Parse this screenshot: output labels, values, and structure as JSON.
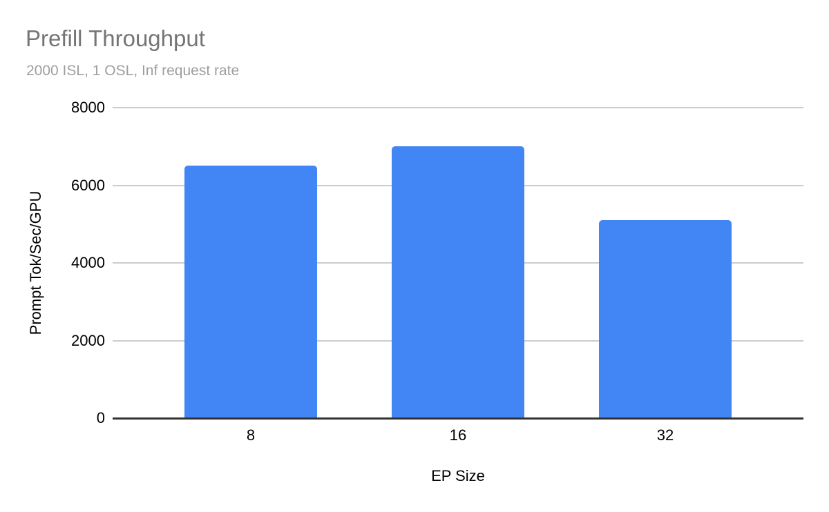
{
  "chart_data": {
    "type": "bar",
    "title": "Prefill Throughput",
    "subtitle": "2000 ISL, 1 OSL, Inf request rate",
    "categories": [
      "8",
      "16",
      "32"
    ],
    "values": [
      6500,
      7000,
      5100
    ],
    "xlabel": "EP Size",
    "ylabel": "Prompt Tok/Sec/GPU",
    "ylim": [
      0,
      8000
    ],
    "yticks": [
      "0",
      "2000",
      "4000",
      "6000",
      "8000"
    ],
    "grid": true,
    "legend_position": "none",
    "colors": {
      "bar": "#4285f4",
      "title": "#757575",
      "subtitle": "#9e9e9e",
      "axis_text": "#000000",
      "gridline": "#cccccc",
      "baseline": "#333333",
      "background": "#ffffff"
    }
  }
}
